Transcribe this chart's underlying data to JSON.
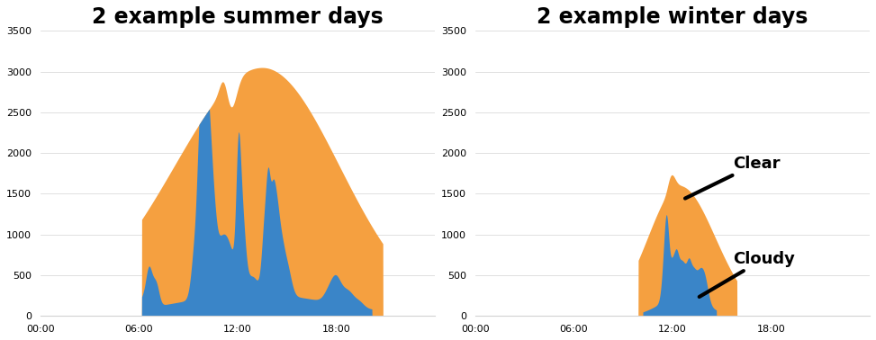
{
  "title_summer": "2 example summer days",
  "title_winter": "2 example winter days",
  "orange": "#F5A040",
  "blue": "#3A85C8",
  "ylim": [
    0,
    3500
  ],
  "yticks": [
    0,
    500,
    1000,
    1500,
    2000,
    2500,
    3000,
    3500
  ],
  "xticks_labels": [
    "00:00",
    "06:00",
    "12:00",
    "18:00"
  ],
  "xticks_pos": [
    0,
    360,
    720,
    1080
  ],
  "total_minutes": 1440,
  "annotation_clear": "Clear",
  "annotation_cloudy": "Cloudy",
  "title_fontsize": 17,
  "label_fontsize": 13
}
